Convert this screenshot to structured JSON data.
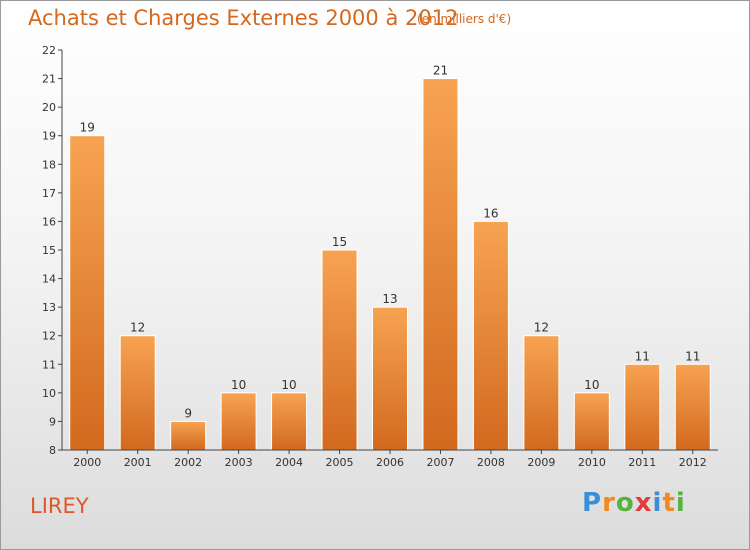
{
  "chart_data": {
    "type": "bar",
    "title": "Achats et Charges Externes 2000 à 2012",
    "subtitle": "(en milliers d'€)",
    "categories": [
      "2000",
      "2001",
      "2002",
      "2003",
      "2004",
      "2005",
      "2006",
      "2007",
      "2008",
      "2009",
      "2010",
      "2011",
      "2012"
    ],
    "values": [
      19,
      12,
      9,
      10,
      10,
      15,
      13,
      21,
      16,
      12,
      10,
      11,
      11
    ],
    "ylim": [
      8,
      22
    ],
    "yticks": [
      8,
      9,
      10,
      11,
      12,
      13,
      14,
      15,
      16,
      17,
      18,
      19,
      20,
      21,
      22
    ],
    "grid": false,
    "legend": "none",
    "xlabel": "",
    "ylabel": "",
    "bar_color_top": "#f7a352",
    "bar_color_bottom": "#d2691e"
  },
  "place_name": "LIREY",
  "logo": {
    "text": "Proxiti",
    "letters": [
      {
        "ch": "P",
        "color": "#3a8fd8"
      },
      {
        "ch": "r",
        "color": "#f08a1c"
      },
      {
        "ch": "o",
        "color": "#57b33e"
      },
      {
        "ch": "x",
        "color": "#e23b3b"
      },
      {
        "ch": "i",
        "color": "#3a8fd8"
      },
      {
        "ch": "t",
        "color": "#f08a1c"
      },
      {
        "ch": "i",
        "color": "#57b33e"
      }
    ]
  }
}
